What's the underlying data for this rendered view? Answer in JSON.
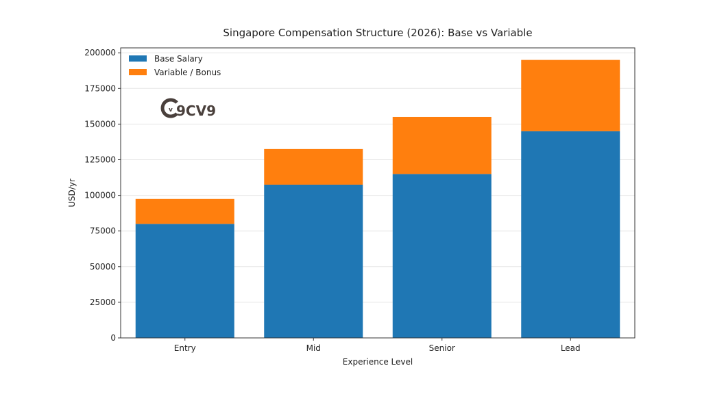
{
  "chart_data": {
    "type": "bar",
    "stacked": true,
    "title": "Singapore Compensation Structure (2026): Base vs Variable",
    "xlabel": "Experience Level",
    "ylabel": "USD/yr",
    "categories": [
      "Entry",
      "Mid",
      "Senior",
      "Lead"
    ],
    "series": [
      {
        "name": "Base Salary",
        "values": [
          80000,
          107500,
          115000,
          145000
        ],
        "color": "#1f77b4"
      },
      {
        "name": "Variable / Bonus",
        "values": [
          17500,
          25000,
          40000,
          50000
        ],
        "color": "#ff7f0e"
      }
    ],
    "ylim": [
      0,
      205000
    ],
    "yticks": [
      0,
      25000,
      50000,
      75000,
      100000,
      125000,
      150000,
      175000,
      200000
    ],
    "grid": "horizontal",
    "legend": "top-left"
  },
  "watermark": "9CV9"
}
